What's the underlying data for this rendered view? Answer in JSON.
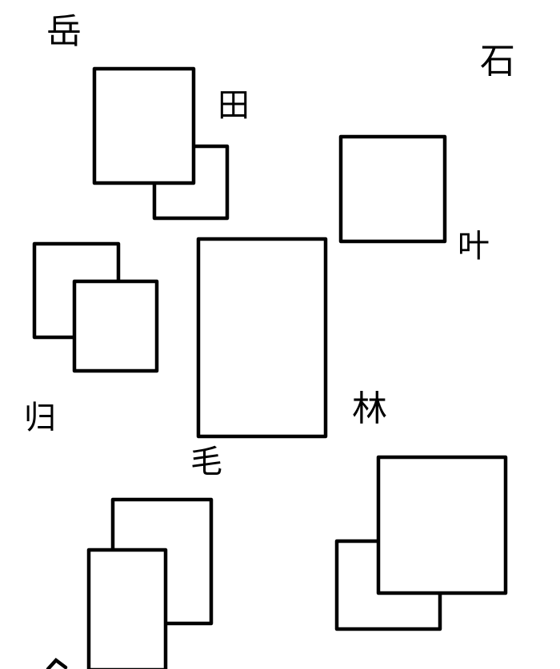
{
  "labels": {
    "yue": "岳",
    "tian": "田",
    "shi": "石",
    "ye": "叶",
    "gui": "归",
    "lin": "林",
    "mao": "毛"
  },
  "colors": {
    "stroke": "#000000",
    "background": "#ffffff"
  }
}
